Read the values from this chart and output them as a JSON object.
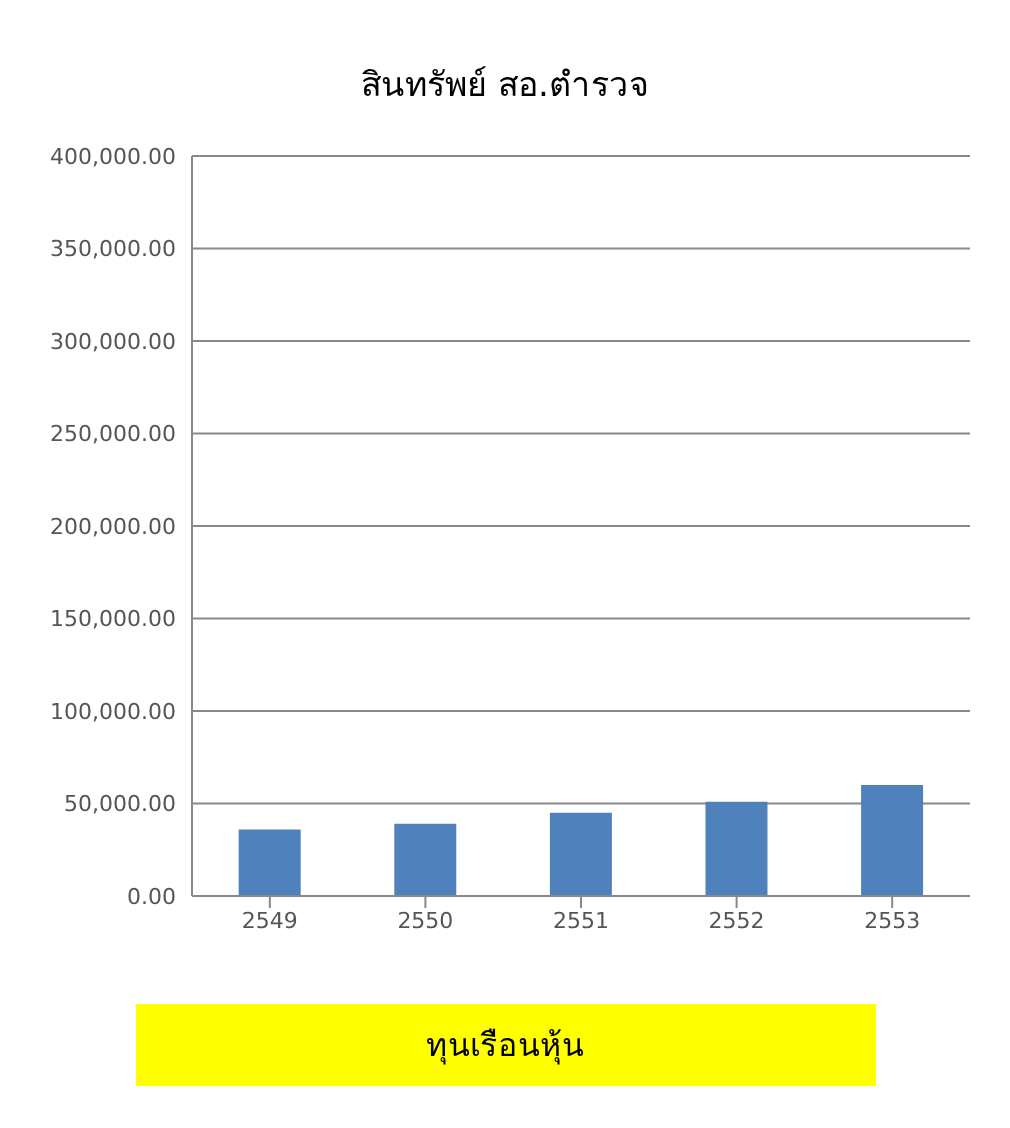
{
  "chart_data": {
    "type": "bar",
    "title": "สินทรัพย์ สอ.ตำรวจ",
    "categories": [
      "2549",
      "2550",
      "2551",
      "2552",
      "2553"
    ],
    "series": [
      {
        "color": "#4f81bd",
        "values": [
          36000,
          39000,
          45000,
          51000,
          60000
        ]
      }
    ],
    "ylim": [
      0,
      400000
    ],
    "yticks": [
      {
        "value": 0,
        "label": "0.00"
      },
      {
        "value": 50000,
        "label": "50,000.00"
      },
      {
        "value": 100000,
        "label": "100,000.00"
      },
      {
        "value": 150000,
        "label": "150,000.00"
      },
      {
        "value": 200000,
        "label": "200,000.00"
      },
      {
        "value": 250000,
        "label": "250,000.00"
      },
      {
        "value": 300000,
        "label": "300,000.00"
      },
      {
        "value": 350000,
        "label": "350,000.00"
      },
      {
        "value": 400000,
        "label": "400,000.00"
      }
    ],
    "grid": "y",
    "annotations": [
      "ทุนเรือนหุ้น"
    ]
  }
}
